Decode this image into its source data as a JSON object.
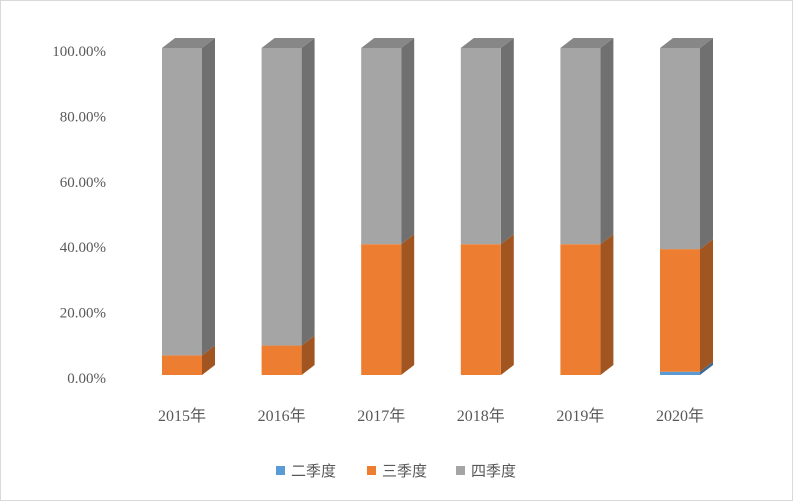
{
  "chart_data": {
    "type": "bar",
    "stacked": true,
    "percent_stacked": true,
    "style": "3d-column",
    "categories": [
      "2015年",
      "2016年",
      "2017年",
      "2018年",
      "2019年",
      "2020年"
    ],
    "series": [
      {
        "name": "二季度",
        "values": [
          0.0,
          0.0,
          0.0,
          0.0,
          0.0,
          1.0
        ],
        "color": "#5b9bd5"
      },
      {
        "name": "三季度",
        "values": [
          6.0,
          9.0,
          40.0,
          40.0,
          40.0,
          37.5
        ],
        "color": "#ed7d31"
      },
      {
        "name": "四季度",
        "values": [
          94.0,
          91.0,
          60.0,
          60.0,
          60.0,
          61.5
        ],
        "color": "#a5a5a5"
      }
    ],
    "y_ticks": [
      "0.00%",
      "20.00%",
      "40.00%",
      "60.00%",
      "80.00%",
      "100.00%"
    ],
    "ylim": [
      0,
      100
    ],
    "grid": false,
    "legend_position": "bottom"
  }
}
